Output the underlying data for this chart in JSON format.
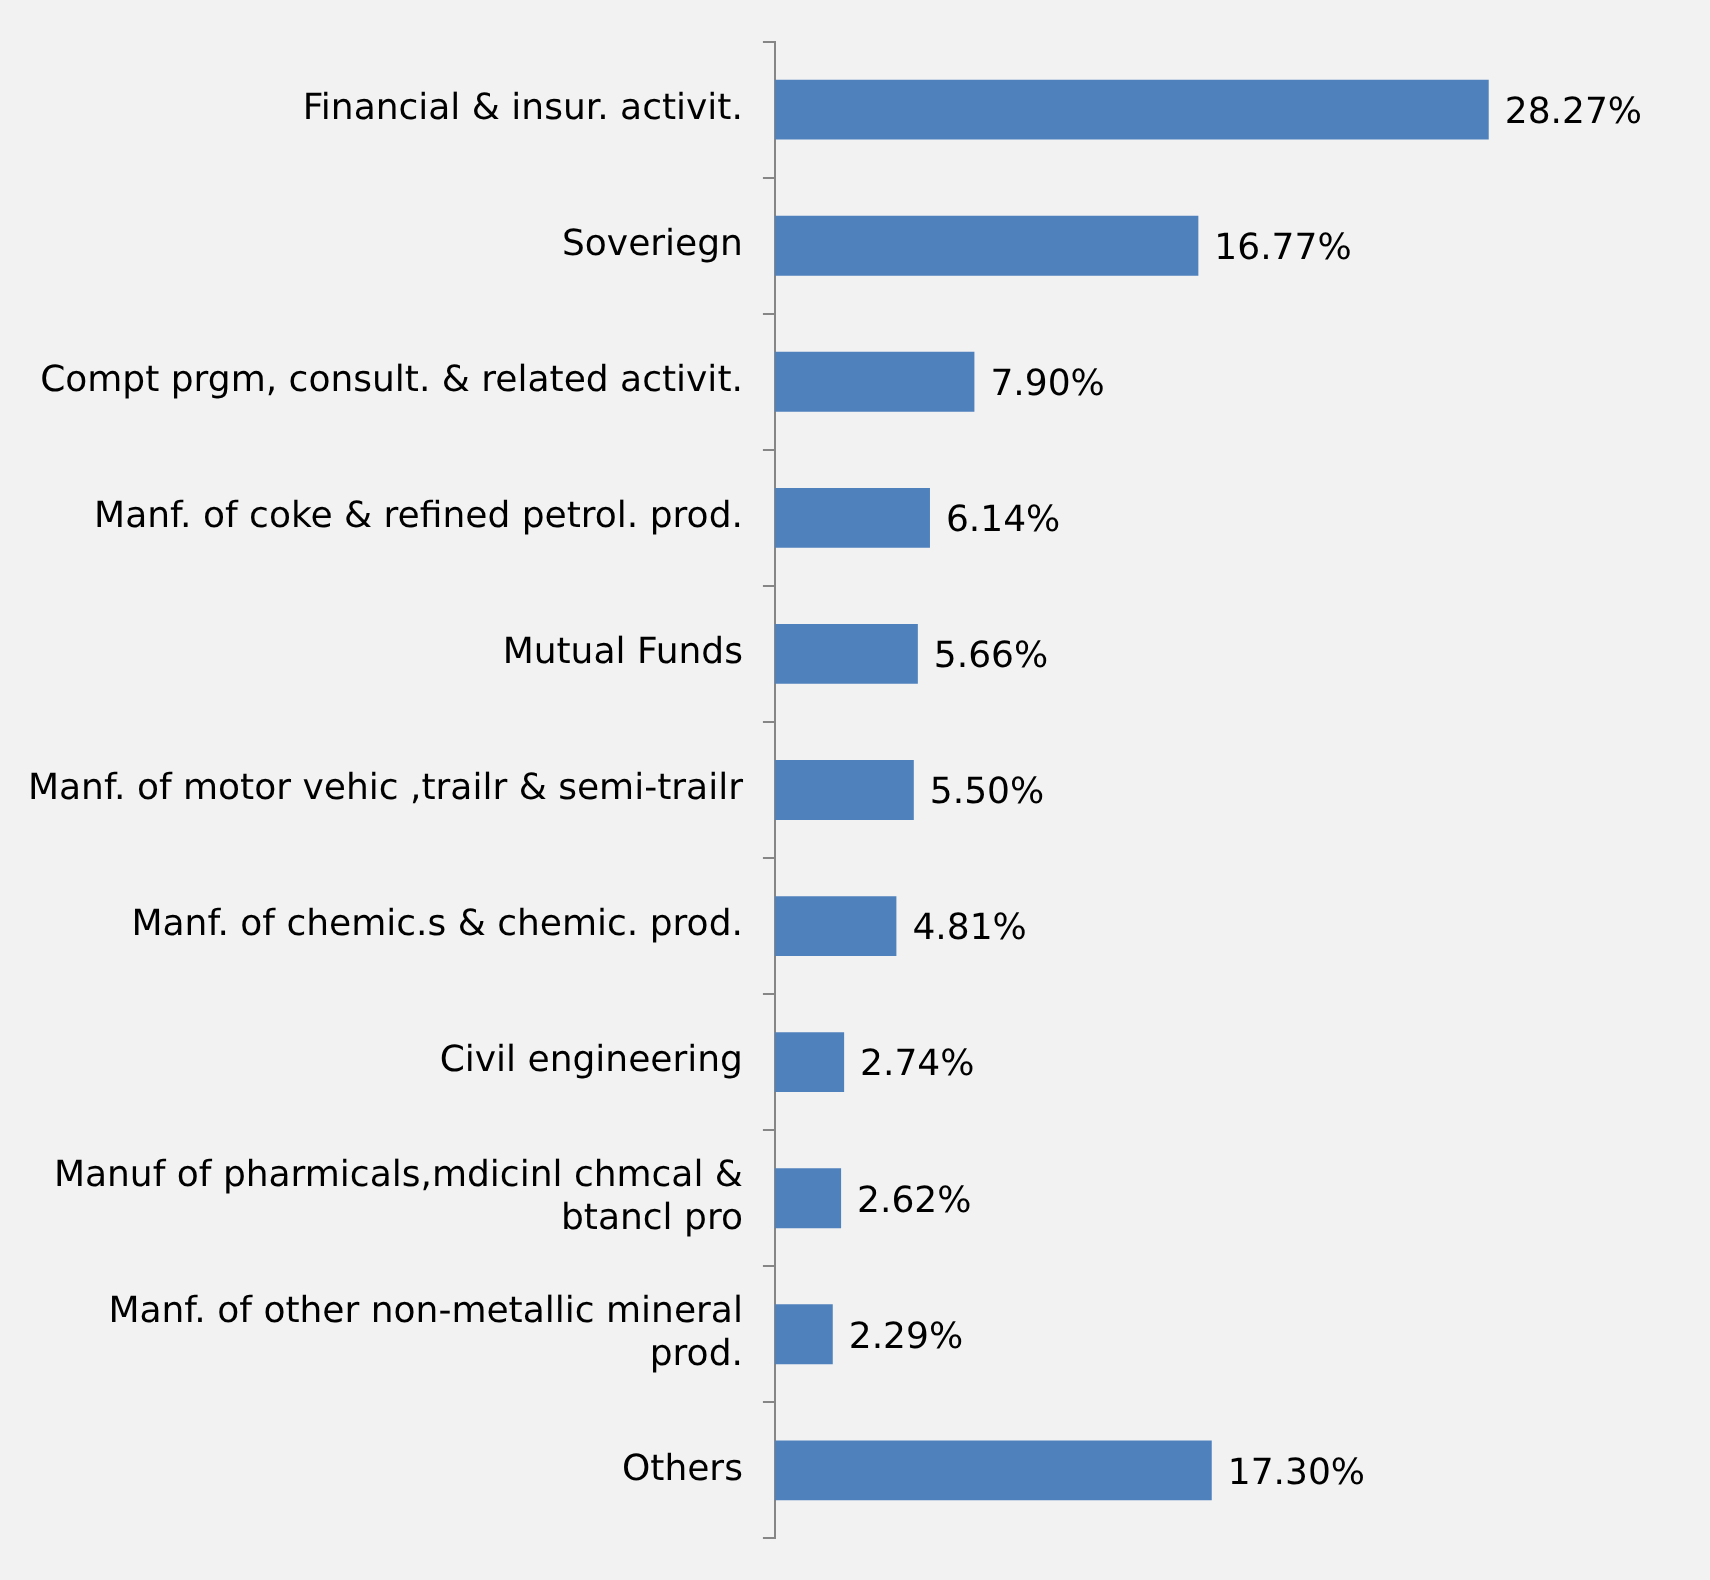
{
  "chart_data": {
    "type": "bar",
    "orientation": "horizontal",
    "categories": [
      "Financial & insur. activit.",
      "Soveriegn",
      "Compt prgm, consult. & related activit.",
      "Manf. of coke & refined petrol. prod.",
      "Mutual Funds",
      "Manf. of motor vehic ,trailr & semi-trailr",
      "Manf. of chemic.s & chemic. prod.",
      "Civil engineering",
      "Manuf of pharmicals,mdicinl chmcal & btancl pro",
      "Manf. of other non-metallic mineral prod.",
      "Others"
    ],
    "values": [
      28.27,
      16.77,
      7.9,
      6.14,
      5.66,
      5.5,
      4.81,
      2.74,
      2.62,
      2.29,
      17.3
    ],
    "value_labels": [
      "28.27%",
      "16.77%",
      "7.90%",
      "6.14%",
      "5.66%",
      "5.50%",
      "4.81%",
      "2.74%",
      "2.62%",
      "2.29%",
      "17.30%"
    ],
    "color": "#4f81bd",
    "grid": false,
    "legend": false
  }
}
